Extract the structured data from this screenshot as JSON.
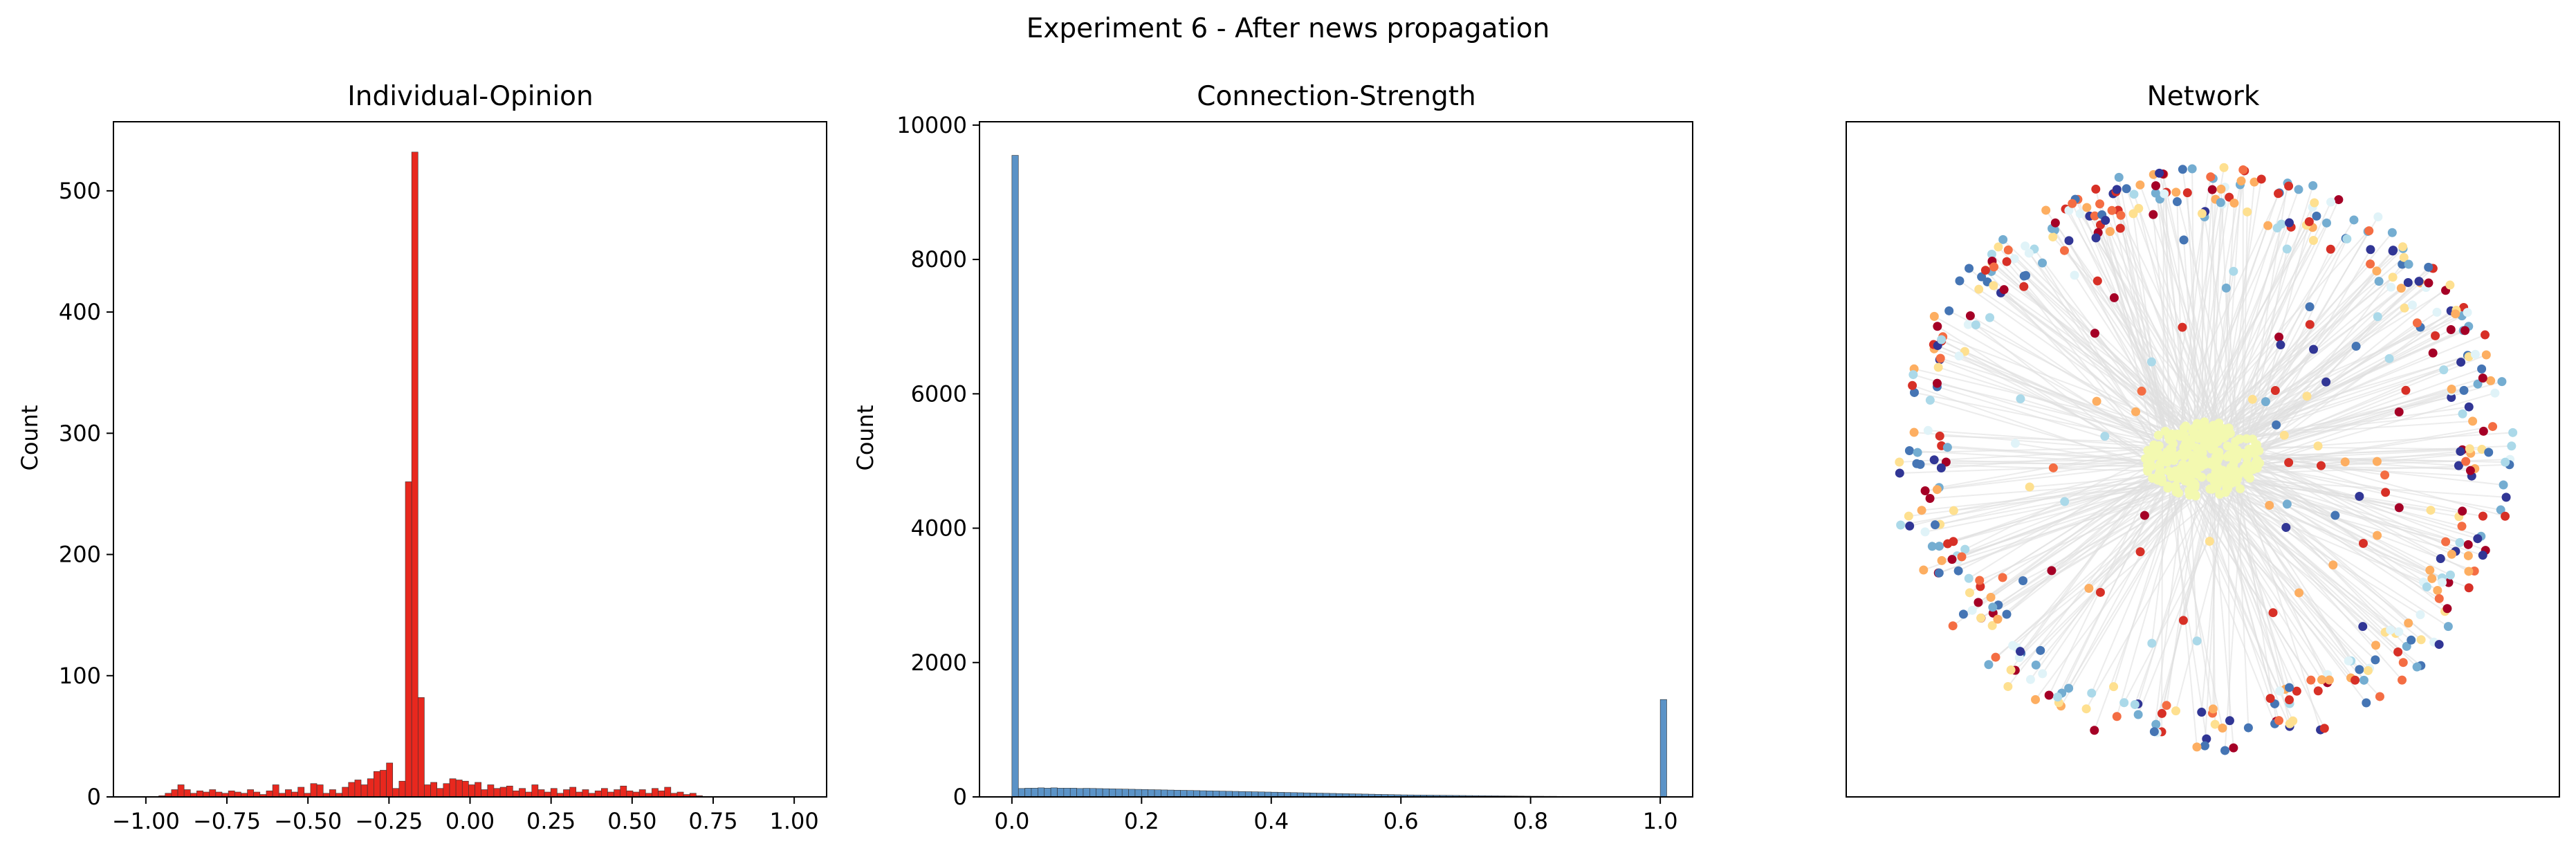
{
  "figure": {
    "title": "Experiment 6 - After news propagation"
  },
  "chart_data": [
    {
      "type": "bar",
      "title": "Individual-Opinion",
      "xlabel": "",
      "ylabel": "Count",
      "xlim": [
        -1.1,
        1.1
      ],
      "ylim": [
        0,
        557
      ],
      "xticks": [
        -1.0,
        -0.75,
        -0.5,
        -0.25,
        0.0,
        0.25,
        0.5,
        0.75,
        1.0
      ],
      "xtick_labels": [
        "−1.00",
        "−0.75",
        "−0.50",
        "−0.25",
        "0.00",
        "0.25",
        "0.50",
        "0.75",
        "1.00"
      ],
      "yticks": [
        0,
        100,
        200,
        300,
        400,
        500
      ],
      "ytick_labels": [
        "0",
        "100",
        "200",
        "300",
        "400",
        "500"
      ],
      "color": "#e8281e",
      "bin_start": -0.96,
      "bin_width": 0.0195,
      "values": [
        1,
        3,
        6,
        10,
        6,
        3,
        5,
        4,
        6,
        4,
        3,
        5,
        4,
        3,
        6,
        4,
        2,
        5,
        10,
        3,
        6,
        4,
        8,
        3,
        11,
        10,
        3,
        6,
        3,
        8,
        12,
        14,
        10,
        15,
        21,
        22,
        28,
        7,
        13,
        260,
        532,
        82,
        10,
        12,
        7,
        11,
        15,
        14,
        13,
        10,
        12,
        6,
        10,
        7,
        8,
        9,
        5,
        7,
        4,
        10,
        6,
        4,
        7,
        3,
        6,
        8,
        4,
        6,
        3,
        5,
        7,
        4,
        6,
        9,
        5,
        4,
        6,
        3,
        7,
        5,
        8,
        3,
        4,
        2,
        3,
        1
      ]
    },
    {
      "type": "bar",
      "title": "Connection-Strength",
      "xlabel": "",
      "ylabel": "Count",
      "xlim": [
        -0.05,
        1.05
      ],
      "ylim": [
        0,
        10050
      ],
      "xticks": [
        0.0,
        0.2,
        0.4,
        0.6,
        0.8,
        1.0
      ],
      "xtick_labels": [
        "0.0",
        "0.2",
        "0.4",
        "0.6",
        "0.8",
        "1.0"
      ],
      "yticks": [
        0,
        2000,
        4000,
        6000,
        8000,
        10000
      ],
      "ytick_labels": [
        "0",
        "2000",
        "4000",
        "6000",
        "8000",
        "10000"
      ],
      "color": "#5b93c7",
      "bin_start": 0.0,
      "bin_width": 0.01,
      "values": [
        9550,
        125,
        130,
        130,
        135,
        130,
        135,
        130,
        130,
        130,
        125,
        128,
        126,
        124,
        122,
        120,
        118,
        116,
        114,
        112,
        110,
        108,
        106,
        104,
        102,
        100,
        98,
        96,
        94,
        92,
        90,
        88,
        86,
        84,
        82,
        80,
        78,
        76,
        74,
        72,
        70,
        68,
        66,
        64,
        62,
        60,
        58,
        56,
        54,
        52,
        50,
        48,
        46,
        44,
        42,
        40,
        38,
        36,
        34,
        32,
        30,
        29,
        28,
        27,
        26,
        25,
        24,
        23,
        22,
        21,
        20,
        19,
        18,
        17,
        16,
        15,
        14,
        13,
        12,
        11,
        10,
        10,
        9,
        9,
        8,
        8,
        7,
        7,
        6,
        6,
        5,
        5,
        5,
        5,
        5,
        5,
        5,
        5,
        6,
        6,
        1450
      ]
    },
    {
      "type": "scatter",
      "title": "Network",
      "xlabel": "",
      "ylabel": "",
      "axis_ticks": false,
      "center_cluster_color": "#f3f9b0",
      "node_palette": [
        "#313695",
        "#4575b4",
        "#74add1",
        "#abd9e9",
        "#e0f3f8",
        "#fee090",
        "#fdae61",
        "#f46d43",
        "#d73027",
        "#a50026"
      ],
      "edge_color": "#e0e0e0",
      "ring_nodes": 420,
      "interior_nodes": 70
    }
  ]
}
